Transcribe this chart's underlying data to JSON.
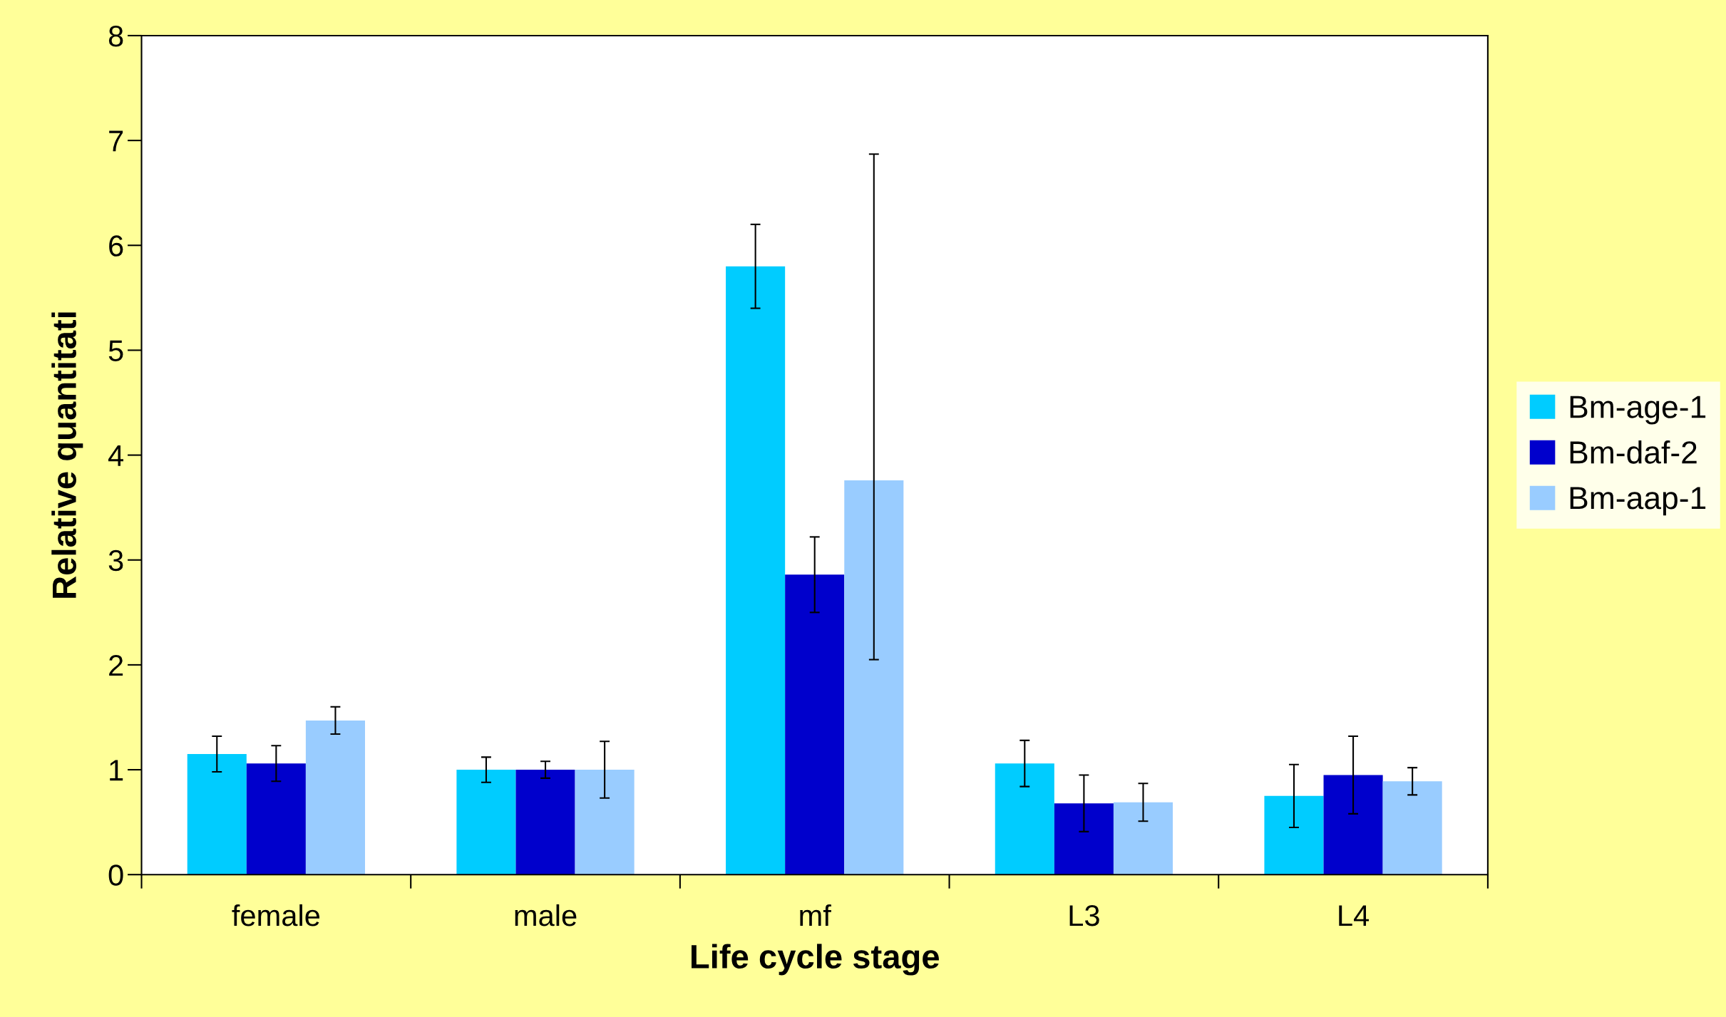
{
  "chart_data": {
    "type": "bar",
    "xlabel": "Life cycle stage",
    "ylabel": "Relative quantitati",
    "categories": [
      "female",
      "male",
      "mf",
      "L3",
      "L4"
    ],
    "series": [
      {
        "name": "Bm-age-1",
        "color": "#00ccff",
        "values": [
          1.15,
          1.0,
          5.8,
          1.06,
          0.75
        ],
        "errors": [
          0.17,
          0.12,
          0.4,
          0.22,
          0.3
        ]
      },
      {
        "name": "Bm-daf-2",
        "color": "#0000cc",
        "values": [
          1.06,
          1.0,
          2.86,
          0.68,
          0.95
        ],
        "errors": [
          0.17,
          0.08,
          0.36,
          0.27,
          0.37
        ]
      },
      {
        "name": "Bm-aap-1",
        "color": "#99ccff",
        "values": [
          1.47,
          1.0,
          3.76,
          0.69,
          0.89
        ],
        "errors": [
          0.13,
          0.27,
          [
            2.05,
            6.87
          ],
          0.18,
          0.13
        ]
      }
    ],
    "ylim": [
      0,
      8
    ],
    "yticks": [
      0,
      1,
      2,
      3,
      4,
      5,
      6,
      7,
      8
    ],
    "grid": false,
    "legend": "right"
  }
}
